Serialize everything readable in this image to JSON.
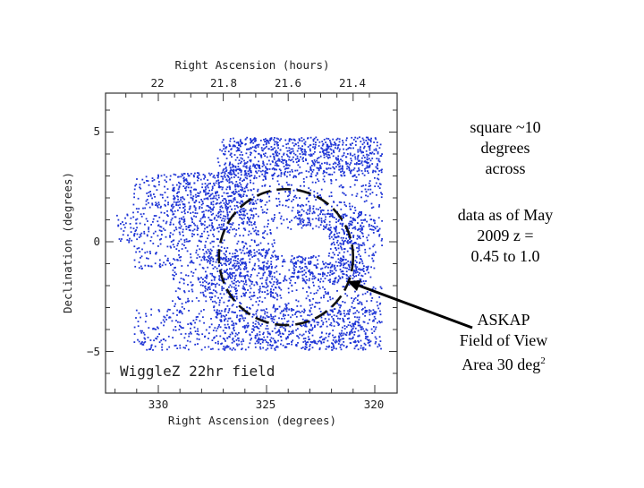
{
  "chart_data": {
    "type": "scatter",
    "title": "WiggleZ 22hr field",
    "xlabel": "Right Ascension (degrees)",
    "ylabel": "Declination (degrees)",
    "top_xlabel": "Right Ascension (hours)",
    "x_ticks": [
      {
        "value": 330,
        "label": "330"
      },
      {
        "value": 325,
        "label": "325"
      },
      {
        "value": 320,
        "label": "320"
      }
    ],
    "y_ticks": [
      {
        "value": 5,
        "label": "5"
      },
      {
        "value": 0,
        "label": "0"
      },
      {
        "value": -5,
        "label": "−5"
      }
    ],
    "top_ticks": [
      {
        "value": 22.0,
        "label": "22"
      },
      {
        "value": 21.8,
        "label": "21.8"
      },
      {
        "value": 21.6,
        "label": "21.6"
      },
      {
        "value": 21.4,
        "label": "21.4"
      }
    ],
    "xlim": [
      333.0,
      319.5
    ],
    "ylim": [
      -6.9,
      6.9
    ],
    "x_reversed": true,
    "point_color": "#1f35d6",
    "circle": {
      "ra_center": 324.1,
      "dec_center": -0.7,
      "diameter_deg": 6.2,
      "style": "dashed",
      "color": "#000000"
    },
    "series": [
      {
        "regions": [
          {
            "ra": [
              331.2,
              319.7
            ],
            "dec": [
              -4.9,
              4.8
            ],
            "density": 0.55
          },
          {
            "ra": [
              327.0,
              319.8
            ],
            "dec": [
              3.0,
              4.8
            ],
            "density": 0.95
          },
          {
            "ra": [
              329.5,
              325.5
            ],
            "dec": [
              0.5,
              3.5
            ],
            "density": 0.8
          },
          {
            "ra": [
              328.0,
              324.5
            ],
            "dec": [
              -2.5,
              -0.3
            ],
            "density": 1.0
          },
          {
            "ra": [
              323.8,
              320.5
            ],
            "dec": [
              -1.8,
              1.5
            ],
            "density": 1.0
          },
          {
            "ra": [
              327.5,
              320.0
            ],
            "dec": [
              -4.9,
              -3.0
            ],
            "density": 0.7
          },
          {
            "ra": [
              332.0,
              330.6
            ],
            "dec": [
              0.0,
              1.3
            ],
            "density": 0.6
          }
        ],
        "gaps": [
          {
            "ra": [
              331.2,
              327.3
            ],
            "dec": [
              3.2,
              4.8
            ]
          },
          {
            "ra": [
              331.2,
              329.4
            ],
            "dec": [
              -3.0,
              -1.2
            ]
          },
          {
            "ra": [
              324.6,
              322.2
            ],
            "dec": [
              -0.6,
              0.6
            ]
          },
          {
            "ra": [
              320.0,
              319.7
            ],
            "dec": [
              -2.0,
              -0.5
            ]
          }
        ]
      }
    ]
  },
  "annotations": {
    "square_note": [
      "square ~10",
      "degrees",
      "across"
    ],
    "data_note": [
      "data as of May",
      "2009 z =",
      "0.45 to 1.0"
    ],
    "askap_note": {
      "line1": "ASKAP",
      "line2": "Field of View",
      "line3_prefix": "Area 30 deg",
      "line3_sup": "2"
    }
  }
}
